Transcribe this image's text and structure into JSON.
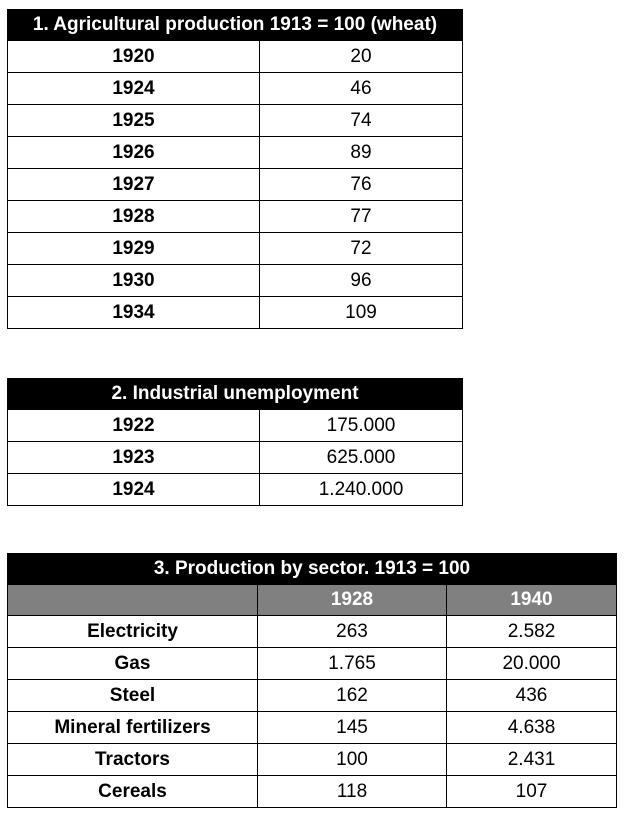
{
  "table1": {
    "title": "1. Agricultural production 1913 = 100 (wheat)",
    "rows": [
      {
        "year": "1920",
        "value": "20"
      },
      {
        "year": "1924",
        "value": "46"
      },
      {
        "year": "1925",
        "value": "74"
      },
      {
        "year": "1926",
        "value": "89"
      },
      {
        "year": "1927",
        "value": "76"
      },
      {
        "year": "1928",
        "value": "77"
      },
      {
        "year": "1929",
        "value": "72"
      },
      {
        "year": "1930",
        "value": "96"
      },
      {
        "year": "1934",
        "value": "109"
      }
    ]
  },
  "table2": {
    "title": "2. Industrial unemployment",
    "rows": [
      {
        "year": "1922",
        "value": "175.000"
      },
      {
        "year": "1923",
        "value": "625.000"
      },
      {
        "year": "1924",
        "value": "1.240.000"
      }
    ]
  },
  "table3": {
    "title": "3. Production by sector. 1913 = 100",
    "columns": [
      "",
      "1928",
      "1940"
    ],
    "rows": [
      {
        "sector": "Electricity",
        "v1928": "263",
        "v1940": "2.582"
      },
      {
        "sector": "Gas",
        "v1928": "1.765",
        "v1940": "20.000"
      },
      {
        "sector": "Steel",
        "v1928": "162",
        "v1940": "436"
      },
      {
        "sector": "Mineral fertilizers",
        "v1928": "145",
        "v1940": "4.638"
      },
      {
        "sector": "Tractors",
        "v1928": "100",
        "v1940": "2.431"
      },
      {
        "sector": "Cereals",
        "v1928": "118",
        "v1940": "107"
      }
    ]
  },
  "colors": {
    "header_bg": "#000000",
    "subheader_bg": "#808080",
    "text": "#000000"
  }
}
